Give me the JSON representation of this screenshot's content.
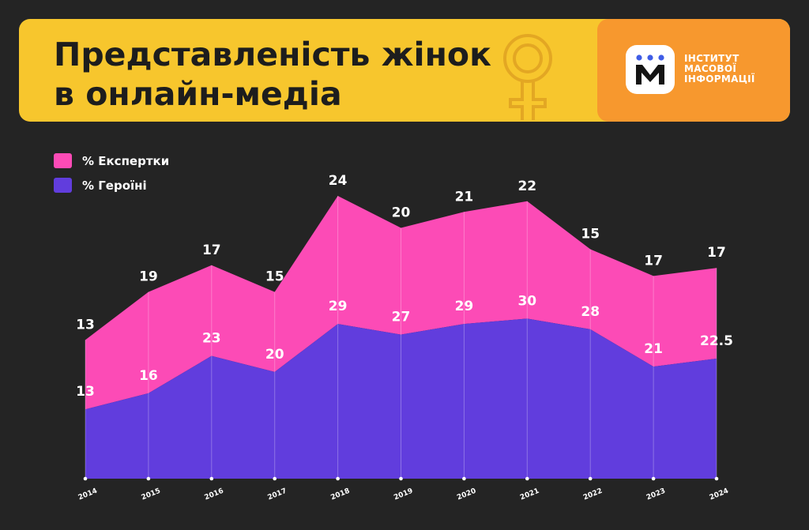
{
  "header": {
    "title_line1": "Представленість жінок",
    "title_line2": "в онлайн-медіа"
  },
  "logo": {
    "line1": "ІНСТИТУТ",
    "line2": "МАСОВОЇ",
    "line3": "ІНФОРМАЦІЇ",
    "mark_icon": "imi-m-logo-icon"
  },
  "colors": {
    "experts": "#fc4bb6",
    "heroines": "#613ddd",
    "banner": "#f7c62d",
    "logo_panel": "#f7982e",
    "background": "#242424"
  },
  "chart_data": {
    "type": "area",
    "title": "Представленість жінок в онлайн-медіа",
    "xlabel": "",
    "ylabel": "",
    "legend_position": "top-left",
    "stacked": true,
    "x": [
      "2014",
      "2015",
      "2016",
      "2017",
      "2018",
      "2019",
      "2020",
      "2021",
      "2022",
      "2023",
      "2024"
    ],
    "series": [
      {
        "name": "% Героїні",
        "values": [
          13,
          16,
          23,
          20,
          29,
          27,
          29,
          30,
          28,
          21,
          22.5
        ]
      },
      {
        "name": "% Експертки",
        "values": [
          13,
          19,
          17,
          15,
          24,
          20,
          21,
          22,
          15,
          17,
          17
        ]
      }
    ],
    "stack_top_totals": [
      26,
      35,
      40,
      35,
      53,
      47,
      50,
      52,
      43,
      38,
      39.5
    ],
    "ylim": [
      0,
      53
    ],
    "grid": "vertical lines at each year"
  }
}
